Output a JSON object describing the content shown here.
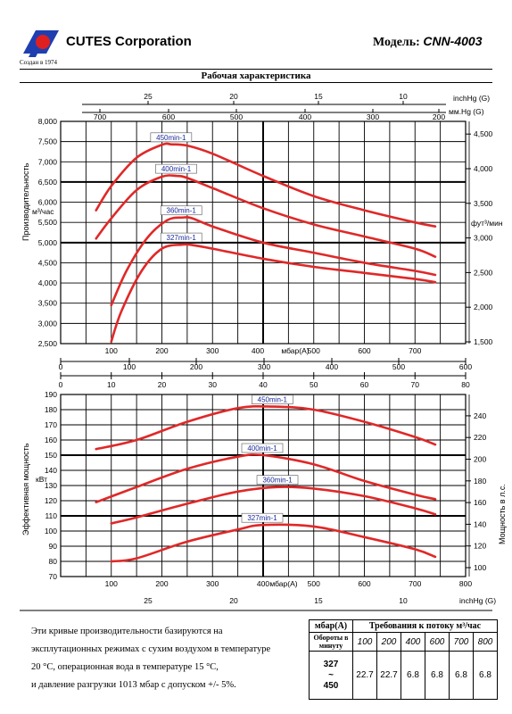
{
  "header": {
    "company": "CUTES Corporation",
    "founded": "Создан в 1974",
    "model_label": "Модель:",
    "model_value": "CNN-4003",
    "logo_icon": "cutes-logo-icon",
    "logo_colors": [
      "#1f3fb0",
      "#e02020"
    ]
  },
  "title": "Рабочая характеристика",
  "colors": {
    "curve": "#e02828",
    "curve_label_bg": "#ffffff",
    "curve_label_text": "#1a2a9a"
  },
  "chart_data": [
    {
      "type": "line",
      "name": "capacity",
      "ylabel": "Производительность",
      "yunit": "м³/час",
      "y2label": "фут³/мин",
      "ylim": [
        2500,
        8000
      ],
      "y_ticks": [
        "2,500",
        "3,000",
        "3,500",
        "4,000",
        "4,500",
        "5,000",
        "5,500",
        "6,000",
        "6,500",
        "7,000",
        "7,500",
        "8,000"
      ],
      "y2_ticks": [
        "1,500",
        "2,000",
        "2,500",
        "3,000",
        "3,500",
        "4,000",
        "4,500"
      ],
      "top_axis_inchHg": {
        "label": "inchHg (G)",
        "ticks": [
          "25",
          "20",
          "15",
          "10"
        ]
      },
      "top_axis_mmHg": {
        "label": "мм.Hg (G)",
        "ticks": [
          "700",
          "600",
          "500",
          "400",
          "300",
          "200"
        ]
      },
      "xlabel": "мбар(А)",
      "x_ticks": [
        "100",
        "200",
        "300",
        "400",
        "500",
        "600",
        "700"
      ],
      "xlim": [
        0,
        800
      ],
      "series": [
        {
          "name": "450min-1",
          "x": [
            70,
            100,
            150,
            200,
            220,
            250,
            300,
            400,
            500,
            600,
            700,
            740
          ],
          "y": [
            5800,
            6400,
            7100,
            7420,
            7430,
            7400,
            7200,
            6650,
            6150,
            5800,
            5500,
            5400
          ]
        },
        {
          "name": "400min-1",
          "x": [
            70,
            100,
            150,
            200,
            230,
            250,
            300,
            400,
            500,
            600,
            700,
            740
          ],
          "y": [
            5100,
            5600,
            6300,
            6630,
            6650,
            6600,
            6350,
            5850,
            5450,
            5150,
            4850,
            4650
          ]
        },
        {
          "name": "360min-1",
          "x": [
            100,
            130,
            170,
            210,
            240,
            260,
            300,
            400,
            500,
            600,
            700,
            740
          ],
          "y": [
            3450,
            4300,
            5100,
            5550,
            5620,
            5600,
            5400,
            5000,
            4750,
            4500,
            4300,
            4200
          ]
        },
        {
          "name": "327min-1",
          "x": [
            100,
            120,
            160,
            200,
            240,
            260,
            300,
            400,
            500,
            600,
            700,
            740
          ],
          "y": [
            2550,
            3300,
            4300,
            4850,
            4950,
            4940,
            4850,
            4600,
            4400,
            4250,
            4100,
            4020
          ]
        }
      ]
    },
    {
      "type": "line",
      "name": "power",
      "ylabel": "Эффективная мощность",
      "yunit": "кВт",
      "y2label": "Мощность в л.с.",
      "ylim": [
        70,
        190
      ],
      "y_ticks": [
        "70",
        "80",
        "90",
        "100",
        "110",
        "120",
        "130",
        "140",
        "150",
        "160",
        "170",
        "180",
        "190"
      ],
      "y2_ticks": [
        "100",
        "120",
        "140",
        "160",
        "180",
        "200",
        "220",
        "240"
      ],
      "top_axis_mbar": {
        "ticks": [
          "0",
          "100",
          "200",
          "300",
          "400",
          "500",
          "600"
        ]
      },
      "top_axis_inchHg": {
        "ticks": [
          "0",
          "10",
          "20",
          "30",
          "40",
          "50",
          "60",
          "70",
          "80"
        ]
      },
      "xlabel": "мбар(А)",
      "x_ticks": [
        "100",
        "200",
        "300",
        "400",
        "500",
        "600",
        "700",
        "800"
      ],
      "bottom_axis_inchHg": {
        "label": "inchHg (G)",
        "ticks": [
          "25",
          "20",
          "15",
          "10"
        ]
      },
      "xlim": [
        0,
        800
      ],
      "series": [
        {
          "name": "450min-1",
          "x": [
            70,
            150,
            250,
            350,
            420,
            500,
            600,
            700,
            740
          ],
          "y": [
            154,
            160,
            172,
            181,
            182,
            180,
            172,
            162,
            157
          ]
        },
        {
          "name": "400min-1",
          "x": [
            70,
            150,
            250,
            350,
            400,
            500,
            600,
            700,
            740
          ],
          "y": [
            119,
            129,
            141,
            149,
            150,
            144,
            133,
            124,
            121
          ]
        },
        {
          "name": "360min-1",
          "x": [
            100,
            150,
            250,
            350,
            430,
            500,
            600,
            700,
            740
          ],
          "y": [
            105,
            109,
            118,
            126,
            129,
            128,
            123,
            115,
            111
          ]
        },
        {
          "name": "327min-1",
          "x": [
            100,
            150,
            250,
            350,
            400,
            500,
            600,
            700,
            740
          ],
          "y": [
            80,
            82,
            93,
            101,
            104,
            103,
            96,
            88,
            83
          ]
        }
      ]
    }
  ],
  "note": [
    "Эти кривые производительности базируются на",
    "эксплутационных режимах с сухим воздухом в температуре",
    "20 °C, операционная вода в температуре 15 °C,",
    "и давление разгрузки 1013 мбар с допуском +/- 5%."
  ],
  "table": {
    "col0_header": "мбар(А)",
    "col_group_header": "Требования к потоку м³/час",
    "row_header": "Обороты в минуту",
    "pressures": [
      "100",
      "200",
      "400",
      "600",
      "700",
      "800"
    ],
    "rpm_range": [
      "327",
      "~",
      "450"
    ],
    "values": [
      "22.7",
      "22.7",
      "6.8",
      "6.8",
      "6.8",
      "6.8"
    ]
  }
}
